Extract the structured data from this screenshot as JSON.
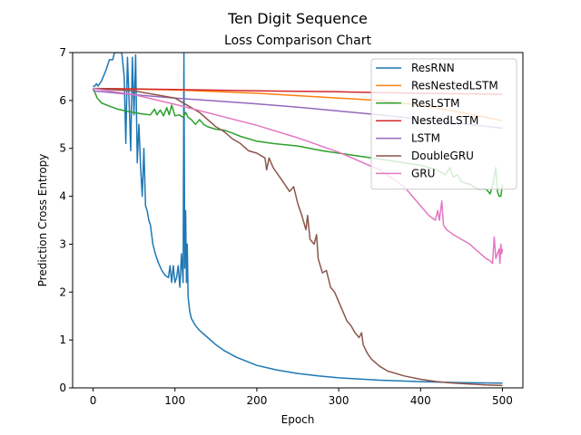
{
  "chart_data": {
    "type": "line",
    "title": "Ten Digit Sequence",
    "subtitle": "Loss Comparison Chart",
    "xlabel": "Epoch",
    "ylabel": "Prediction Cross Entropy",
    "xlim": [
      -25,
      525
    ],
    "ylim": [
      0,
      7
    ],
    "xticks": [
      0,
      100,
      200,
      300,
      400,
      500
    ],
    "yticks": [
      0,
      1,
      2,
      3,
      4,
      5,
      6,
      7
    ],
    "grid": false,
    "legend_position": "top-right",
    "series": [
      {
        "name": "ResRNN",
        "color": "#1f77b4",
        "points": [
          [
            0,
            6.3
          ],
          [
            2,
            6.3
          ],
          [
            4,
            6.35
          ],
          [
            6,
            6.3
          ],
          [
            10,
            6.4
          ],
          [
            15,
            6.6
          ],
          [
            20,
            6.85
          ],
          [
            24,
            6.85
          ],
          [
            26,
            7.0
          ],
          [
            30,
            7.0
          ],
          [
            35,
            7.0
          ],
          [
            38,
            6.5
          ],
          [
            40,
            5.1
          ],
          [
            42,
            6.9
          ],
          [
            44,
            6.0
          ],
          [
            46,
            4.95
          ],
          [
            48,
            6.9
          ],
          [
            50,
            5.7
          ],
          [
            52,
            6.95
          ],
          [
            54,
            4.7
          ],
          [
            56,
            5.5
          ],
          [
            58,
            4.6
          ],
          [
            60,
            4.0
          ],
          [
            62,
            5.0
          ],
          [
            64,
            3.8
          ],
          [
            66,
            3.7
          ],
          [
            68,
            3.5
          ],
          [
            70,
            3.4
          ],
          [
            73,
            3.0
          ],
          [
            76,
            2.8
          ],
          [
            80,
            2.6
          ],
          [
            84,
            2.45
          ],
          [
            88,
            2.35
          ],
          [
            92,
            2.3
          ],
          [
            94,
            2.55
          ],
          [
            96,
            2.2
          ],
          [
            98,
            2.55
          ],
          [
            100,
            2.2
          ],
          [
            102,
            2.3
          ],
          [
            104,
            2.55
          ],
          [
            106,
            2.1
          ],
          [
            108,
            2.8
          ],
          [
            110,
            2.2
          ],
          [
            111,
            7.0
          ],
          [
            112,
            2.5
          ],
          [
            113,
            3.7
          ],
          [
            114,
            2.2
          ],
          [
            115,
            3.0
          ],
          [
            116,
            1.9
          ],
          [
            118,
            1.6
          ],
          [
            120,
            1.45
          ],
          [
            125,
            1.3
          ],
          [
            130,
            1.2
          ],
          [
            140,
            1.05
          ],
          [
            150,
            0.9
          ],
          [
            160,
            0.78
          ],
          [
            175,
            0.64
          ],
          [
            200,
            0.47
          ],
          [
            225,
            0.37
          ],
          [
            250,
            0.3
          ],
          [
            275,
            0.25
          ],
          [
            300,
            0.21
          ],
          [
            350,
            0.16
          ],
          [
            400,
            0.13
          ],
          [
            450,
            0.11
          ],
          [
            500,
            0.1
          ]
        ]
      },
      {
        "name": "ResNestedLSTM",
        "color": "#ff7f0e",
        "points": [
          [
            0,
            6.25
          ],
          [
            100,
            6.22
          ],
          [
            200,
            6.15
          ],
          [
            300,
            6.05
          ],
          [
            350,
            6.0
          ],
          [
            400,
            5.9
          ],
          [
            450,
            5.75
          ],
          [
            500,
            5.58
          ]
        ]
      },
      {
        "name": "ResLSTM",
        "color": "#2ca02c",
        "points": [
          [
            0,
            6.25
          ],
          [
            5,
            6.05
          ],
          [
            10,
            5.95
          ],
          [
            20,
            5.88
          ],
          [
            30,
            5.82
          ],
          [
            40,
            5.78
          ],
          [
            50,
            5.75
          ],
          [
            60,
            5.72
          ],
          [
            70,
            5.7
          ],
          [
            75,
            5.82
          ],
          [
            78,
            5.7
          ],
          [
            82,
            5.8
          ],
          [
            86,
            5.68
          ],
          [
            90,
            5.85
          ],
          [
            93,
            5.7
          ],
          [
            96,
            5.9
          ],
          [
            100,
            5.68
          ],
          [
            105,
            5.7
          ],
          [
            110,
            5.65
          ],
          [
            113,
            5.75
          ],
          [
            116,
            5.65
          ],
          [
            120,
            5.6
          ],
          [
            125,
            5.5
          ],
          [
            130,
            5.6
          ],
          [
            135,
            5.5
          ],
          [
            140,
            5.45
          ],
          [
            150,
            5.4
          ],
          [
            160,
            5.38
          ],
          [
            170,
            5.32
          ],
          [
            180,
            5.25
          ],
          [
            200,
            5.15
          ],
          [
            220,
            5.1
          ],
          [
            250,
            5.05
          ],
          [
            280,
            4.95
          ],
          [
            300,
            4.9
          ],
          [
            320,
            4.85
          ],
          [
            340,
            4.8
          ],
          [
            360,
            4.75
          ],
          [
            380,
            4.7
          ],
          [
            400,
            4.65
          ],
          [
            420,
            4.55
          ],
          [
            430,
            4.45
          ],
          [
            436,
            4.6
          ],
          [
            440,
            4.4
          ],
          [
            445,
            4.45
          ],
          [
            450,
            4.3
          ],
          [
            460,
            4.25
          ],
          [
            470,
            4.15
          ],
          [
            480,
            4.15
          ],
          [
            485,
            4.05
          ],
          [
            489,
            4.3
          ],
          [
            492,
            4.6
          ],
          [
            494,
            4.1
          ],
          [
            496,
            4.0
          ],
          [
            498,
            4.0
          ],
          [
            500,
            4.25
          ]
        ]
      },
      {
        "name": "NestedLSTM",
        "color": "#d62728",
        "points": [
          [
            0,
            6.25
          ],
          [
            100,
            6.23
          ],
          [
            200,
            6.2
          ],
          [
            300,
            6.18
          ],
          [
            400,
            6.15
          ],
          [
            500,
            6.13
          ]
        ]
      },
      {
        "name": "LSTM",
        "color": "#9467bd",
        "points": [
          [
            0,
            6.2
          ],
          [
            50,
            6.12
          ],
          [
            100,
            6.05
          ],
          [
            150,
            5.99
          ],
          [
            200,
            5.93
          ],
          [
            250,
            5.86
          ],
          [
            300,
            5.78
          ],
          [
            350,
            5.7
          ],
          [
            400,
            5.61
          ],
          [
            450,
            5.52
          ],
          [
            500,
            5.42
          ]
        ]
      },
      {
        "name": "DoubleGRU",
        "color": "#8c564b",
        "points": [
          [
            0,
            6.25
          ],
          [
            50,
            6.2
          ],
          [
            100,
            6.05
          ],
          [
            120,
            5.85
          ],
          [
            130,
            5.75
          ],
          [
            140,
            5.6
          ],
          [
            150,
            5.45
          ],
          [
            160,
            5.35
          ],
          [
            170,
            5.2
          ],
          [
            180,
            5.1
          ],
          [
            190,
            4.95
          ],
          [
            200,
            4.9
          ],
          [
            210,
            4.8
          ],
          [
            212,
            4.55
          ],
          [
            215,
            4.8
          ],
          [
            220,
            4.6
          ],
          [
            230,
            4.35
          ],
          [
            240,
            4.1
          ],
          [
            245,
            4.2
          ],
          [
            250,
            3.85
          ],
          [
            255,
            3.6
          ],
          [
            260,
            3.3
          ],
          [
            262,
            3.6
          ],
          [
            265,
            3.1
          ],
          [
            270,
            3.0
          ],
          [
            273,
            3.2
          ],
          [
            275,
            2.7
          ],
          [
            280,
            2.4
          ],
          [
            285,
            2.45
          ],
          [
            290,
            2.1
          ],
          [
            295,
            2.0
          ],
          [
            300,
            1.8
          ],
          [
            305,
            1.6
          ],
          [
            310,
            1.4
          ],
          [
            315,
            1.3
          ],
          [
            320,
            1.15
          ],
          [
            325,
            1.05
          ],
          [
            328,
            1.15
          ],
          [
            330,
            0.9
          ],
          [
            335,
            0.72
          ],
          [
            340,
            0.6
          ],
          [
            350,
            0.45
          ],
          [
            360,
            0.35
          ],
          [
            380,
            0.25
          ],
          [
            400,
            0.18
          ],
          [
            420,
            0.13
          ],
          [
            440,
            0.1
          ],
          [
            460,
            0.08
          ],
          [
            480,
            0.06
          ],
          [
            500,
            0.05
          ]
        ]
      },
      {
        "name": "GRU",
        "color": "#e377c2",
        "points": [
          [
            0,
            6.25
          ],
          [
            50,
            6.12
          ],
          [
            100,
            5.92
          ],
          [
            150,
            5.7
          ],
          [
            200,
            5.48
          ],
          [
            250,
            5.22
          ],
          [
            300,
            4.92
          ],
          [
            350,
            4.55
          ],
          [
            380,
            4.2
          ],
          [
            400,
            3.8
          ],
          [
            410,
            3.6
          ],
          [
            418,
            3.5
          ],
          [
            421,
            3.7
          ],
          [
            423,
            3.5
          ],
          [
            426,
            3.9
          ],
          [
            428,
            3.4
          ],
          [
            432,
            3.3
          ],
          [
            436,
            3.25
          ],
          [
            440,
            3.2
          ],
          [
            450,
            3.1
          ],
          [
            460,
            3.0
          ],
          [
            470,
            2.85
          ],
          [
            480,
            2.7
          ],
          [
            485,
            2.65
          ],
          [
            488,
            2.6
          ],
          [
            490,
            3.15
          ],
          [
            492,
            2.7
          ],
          [
            494,
            2.8
          ],
          [
            496,
            2.9
          ],
          [
            497,
            2.6
          ],
          [
            498,
            3.0
          ],
          [
            499,
            2.8
          ],
          [
            500,
            2.9
          ]
        ]
      }
    ]
  }
}
